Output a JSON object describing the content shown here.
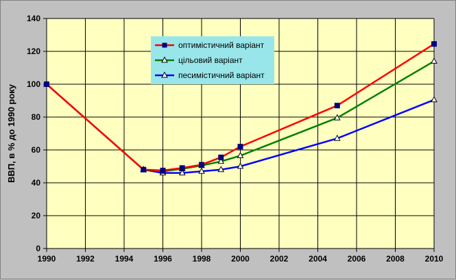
{
  "chart_data": {
    "type": "line",
    "title": "",
    "xlabel": "",
    "ylabel": "ВВП, в % до 1990 року",
    "xlim": [
      1990,
      2010
    ],
    "ylim": [
      0,
      140
    ],
    "x_ticks": [
      1990,
      1992,
      1994,
      1996,
      1998,
      2000,
      2002,
      2004,
      2006,
      2008,
      2010
    ],
    "y_ticks": [
      0,
      20,
      40,
      60,
      80,
      100,
      120,
      140
    ],
    "grid": true,
    "legend_position": "top-center",
    "plot_background": "#ffffc0",
    "series": [
      {
        "name": "оптимістичний варіант",
        "color": "#ff0000",
        "marker": "square",
        "marker_color": "#000080",
        "x": [
          1990,
          1995,
          1996,
          1997,
          1998,
          1999,
          2000,
          2005,
          2010
        ],
        "y": [
          100,
          48,
          47.5,
          49,
          51,
          55.5,
          62,
          87,
          124.5
        ]
      },
      {
        "name": "цільовий варіант",
        "color": "#008000",
        "marker": "triangle",
        "marker_color": "#000000",
        "x": [
          1990,
          1995,
          1996,
          1997,
          1998,
          1999,
          2000,
          2005,
          2010
        ],
        "y": [
          100,
          48,
          47,
          48.5,
          50.5,
          53,
          56.5,
          79.5,
          114
        ]
      },
      {
        "name": "песимістичний варіант",
        "color": "#0000ff",
        "marker": "triangle",
        "marker_color": "#000000",
        "x": [
          1990,
          1995,
          1996,
          1997,
          1998,
          1999,
          2000,
          2005,
          2010
        ],
        "y": [
          100,
          48,
          46,
          46,
          47,
          48,
          50,
          67,
          90.5
        ]
      }
    ]
  }
}
